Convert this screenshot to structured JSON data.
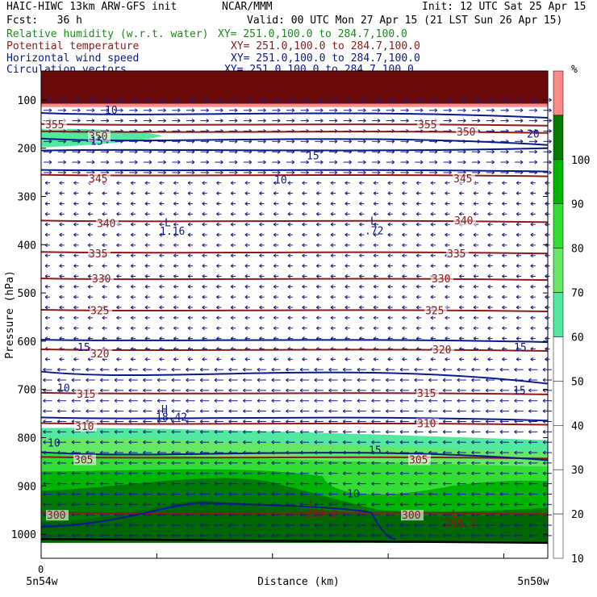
{
  "header": {
    "model": "HAIC-HIWC 13km ARW-GFS init",
    "org": "NCAR/MMM",
    "init": "Init: 12 UTC Sat 25 Apr 15",
    "fcst": "Fcst:   36 h",
    "valid": "Valid: 00 UTC Mon 27 Apr 15 (21 LST Sun 26 Apr 15)",
    "fields": [
      {
        "name": "Relative humidity (w.r.t. water)",
        "xy": "XY= 251.0,100.0 to 284.7,100.0",
        "color": "#1a8a1a"
      },
      {
        "name": "Potential temperature",
        "xy": "XY= 251.0,100.0 to 284.7,100.0",
        "color": "#8b1a1a"
      },
      {
        "name": "Horizontal wind speed",
        "xy": "XY= 251.0,100.0 to 284.7,100.0",
        "color": "#0a1a8a"
      },
      {
        "name": "Circulation vectors",
        "xy": "XY= 251.0,100.0 to 284.7,100.0",
        "color": "#0a1a8a"
      }
    ]
  },
  "chart_data": {
    "type": "heatmap",
    "xlabel": "Distance (km)",
    "ylabel": "Pressure (hPa)",
    "x_start_label": "0",
    "x_left_label": "5n54w",
    "x_right_label": "5n50w",
    "yticks": [
      100,
      200,
      300,
      400,
      500,
      600,
      700,
      800,
      900,
      1000
    ],
    "ylim": [
      1050,
      40
    ],
    "colorbar": {
      "unit": "%",
      "ticks": [
        10,
        20,
        30,
        40,
        50,
        60,
        70,
        80,
        90,
        100
      ],
      "bins": [
        {
          "range": [
            90,
            100
          ],
          "color": "#007a00"
        },
        {
          "range": [
            80,
            90
          ],
          "color": "#00b400"
        },
        {
          "range": [
            70,
            80
          ],
          "color": "#33dd33"
        },
        {
          "range": [
            60,
            70
          ],
          "color": "#66e866"
        },
        {
          "range": [
            50,
            60
          ],
          "color": "#52e8a0"
        },
        {
          "range": [
            100,
            110
          ],
          "color": "#ff8888"
        }
      ]
    },
    "theta_labels": [
      "355",
      "350",
      "345",
      "340",
      "335",
      "330",
      "325",
      "320",
      "315",
      "310",
      "305",
      "300",
      "355",
      "350",
      "345",
      "340",
      "335",
      "330",
      "325",
      "320",
      "315",
      "310",
      "305",
      "300"
    ],
    "theta_levels": [
      {
        "theta": 355,
        "p": 150
      },
      {
        "theta": 350,
        "p": 165
      },
      {
        "theta": 345,
        "p": 255
      },
      {
        "theta": 340,
        "p": 350
      },
      {
        "theta": 335,
        "p": 415
      },
      {
        "theta": 330,
        "p": 470
      },
      {
        "theta": 325,
        "p": 535
      },
      {
        "theta": 320,
        "p": 617
      },
      {
        "theta": 315,
        "p": 707
      },
      {
        "theta": 310,
        "p": 770
      },
      {
        "theta": 305,
        "p": 840
      },
      {
        "theta": 300,
        "p": 955
      }
    ],
    "speed_labels": [
      "10",
      "15",
      "10",
      "15",
      "20",
      "15",
      "10",
      "10",
      "15",
      "15",
      "15",
      "10"
    ],
    "extrema": [
      {
        "type": "L",
        "value": "1.16"
      },
      {
        "type": "L",
        "value": ".72"
      },
      {
        "type": "H",
        "value": "18.42"
      },
      {
        "type": "L",
        "value": "299.2"
      },
      {
        "type": "L",
        "value": "298.2"
      }
    ]
  }
}
